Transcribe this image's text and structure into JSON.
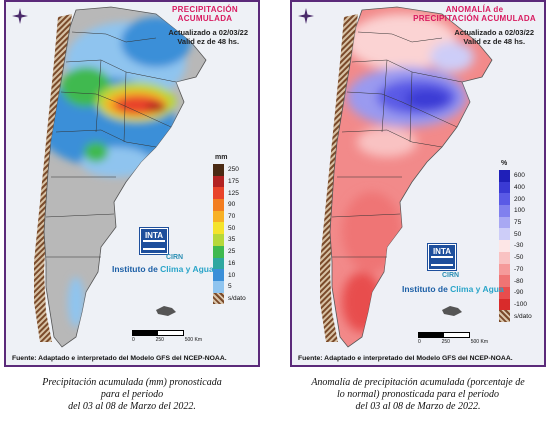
{
  "left_panel": {
    "title_line1": "PRECIPITACIÓN",
    "title_line2": "ACUMULADA",
    "updated": "Actualizado a 02/03/22",
    "validity": "Valid ez de 48 hs.",
    "legend_unit": "mm",
    "legend": [
      {
        "label": "250",
        "color": "#4a2a14"
      },
      {
        "label": "175",
        "color": "#b22222"
      },
      {
        "label": "125",
        "color": "#e8432a"
      },
      {
        "label": "90",
        "color": "#f27d21"
      },
      {
        "label": "70",
        "color": "#f7b025"
      },
      {
        "label": "50",
        "color": "#f4e32c"
      },
      {
        "label": "35",
        "color": "#b6d83a"
      },
      {
        "label": "25",
        "color": "#3fb94f"
      },
      {
        "label": "16",
        "color": "#2ea7a0"
      },
      {
        "label": "10",
        "color": "#3b8fd8"
      },
      {
        "label": "5",
        "color": "#8fc4ef"
      },
      {
        "label": "s/dato",
        "color": "hatch"
      }
    ],
    "logo_text": "INTA",
    "cirn": "CIRN",
    "institute_prefix": "Instituto de ",
    "institute_highlight": "Clima y Agua",
    "scale_labels": [
      "0",
      "250",
      "500 Km"
    ],
    "source": "Fuente: Adaptado e interpretado del Modelo GFS del NCEP-NOAA."
  },
  "right_panel": {
    "title_line1": "ANOMALÍA de",
    "title_line2": "PRECIPITACIÓN ACUMULADA",
    "updated": "Actualizado a 02/03/22",
    "validity": "Valid ez de 48 hs.",
    "legend_unit": "%",
    "legend": [
      {
        "label": "600",
        "color": "#1f1fb8"
      },
      {
        "label": "400",
        "color": "#3a3ad4"
      },
      {
        "label": "200",
        "color": "#5a5ae6"
      },
      {
        "label": "100",
        "color": "#8080ee"
      },
      {
        "label": "75",
        "color": "#a8a8f3"
      },
      {
        "label": "50",
        "color": "#cdcdf8"
      },
      {
        "label": "-30",
        "color": "#fde6e6"
      },
      {
        "label": "-50",
        "color": "#f9c2c2"
      },
      {
        "label": "-70",
        "color": "#f59a9a"
      },
      {
        "label": "-80",
        "color": "#ef7474"
      },
      {
        "label": "-90",
        "color": "#e84d4d"
      },
      {
        "label": "-100",
        "color": "#d92b2b"
      },
      {
        "label": "s/dato",
        "color": "hatch"
      }
    ],
    "logo_text": "INTA",
    "cirn": "CIRN",
    "institute_prefix": "Instituto de ",
    "institute_highlight": "Clima y Agua",
    "scale_labels": [
      "0",
      "250",
      "500 Km"
    ],
    "source": "Fuente: Adaptado e interpretado del Modelo GFS del NCEP-NOAA."
  },
  "captions": {
    "left_line1": "Precipitación acumulada (mm) pronosticada",
    "left_line2": "para el periodo",
    "left_line3": "del 03 al 08 de Marzo del 2022.",
    "right_line1": "Anomalía de precipitación acumulada (porcentaje de",
    "right_line2": "lo normal) pronosticada para el periodo",
    "right_line3": "del 03 al 08 de Marzo de 2022."
  }
}
